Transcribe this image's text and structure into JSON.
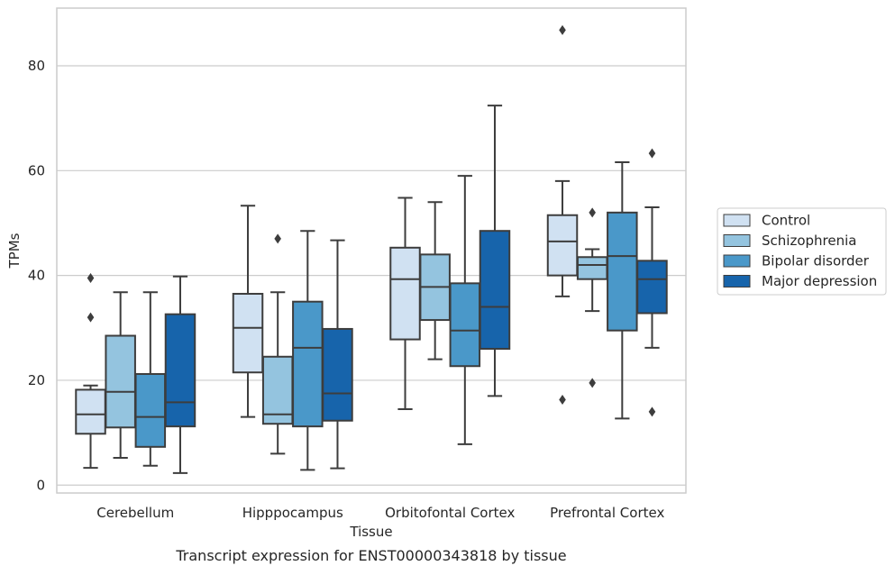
{
  "chart_data": {
    "type": "boxplot",
    "title": "Transcript expression for ENST00000343818 by tissue",
    "xlabel": "Tissue",
    "ylabel": "TPMs",
    "ylim": [
      -1.5,
      91
    ],
    "yticks": [
      0,
      20,
      40,
      60,
      80
    ],
    "grid": "horizontal",
    "legend_position": "right",
    "categories": [
      "Cerebellum",
      "Hipppocampus",
      "Orbitofontal Cortex",
      "Prefrontal Cortex"
    ],
    "series": [
      {
        "name": "Control",
        "color": "#d0e1f2",
        "boxes": [
          {
            "whislo": 3.3,
            "q1": 9.8,
            "med": 13.5,
            "q3": 18.2,
            "whishi": 19.0,
            "fliers": [
              32.0,
              39.5
            ]
          },
          {
            "whislo": 13.0,
            "q1": 21.5,
            "med": 30.0,
            "q3": 36.5,
            "whishi": 53.3,
            "fliers": []
          },
          {
            "whislo": 14.5,
            "q1": 27.8,
            "med": 39.3,
            "q3": 45.3,
            "whishi": 54.8,
            "fliers": []
          },
          {
            "whislo": 36.0,
            "q1": 40.0,
            "med": 46.5,
            "q3": 51.5,
            "whishi": 58.0,
            "fliers": [
              16.3,
              86.8
            ]
          }
        ]
      },
      {
        "name": "Schizophrenia",
        "color": "#94c4df",
        "boxes": [
          {
            "whislo": 5.2,
            "q1": 11.0,
            "med": 17.8,
            "q3": 28.5,
            "whishi": 36.8,
            "fliers": []
          },
          {
            "whislo": 6.0,
            "q1": 11.7,
            "med": 13.5,
            "q3": 24.5,
            "whishi": 36.8,
            "fliers": [
              47.0
            ]
          },
          {
            "whislo": 24.0,
            "q1": 31.5,
            "med": 37.8,
            "q3": 44.0,
            "whishi": 54.0,
            "fliers": []
          },
          {
            "whislo": 33.2,
            "q1": 39.3,
            "med": 42.0,
            "q3": 43.5,
            "whishi": 45.0,
            "fliers": [
              19.5,
              52.0
            ]
          }
        ]
      },
      {
        "name": "Bipolar disorder",
        "color": "#4a98c9",
        "boxes": [
          {
            "whislo": 3.7,
            "q1": 7.3,
            "med": 13.0,
            "q3": 21.2,
            "whishi": 36.8,
            "fliers": []
          },
          {
            "whislo": 2.9,
            "q1": 11.2,
            "med": 26.2,
            "q3": 35.0,
            "whishi": 48.5,
            "fliers": []
          },
          {
            "whislo": 7.8,
            "q1": 22.7,
            "med": 29.5,
            "q3": 38.5,
            "whishi": 59.0,
            "fliers": []
          },
          {
            "whislo": 12.7,
            "q1": 29.5,
            "med": 43.7,
            "q3": 52.0,
            "whishi": 61.6,
            "fliers": []
          }
        ]
      },
      {
        "name": "Major depression",
        "color": "#1764ab",
        "boxes": [
          {
            "whislo": 2.3,
            "q1": 11.2,
            "med": 15.8,
            "q3": 32.6,
            "whishi": 39.8,
            "fliers": []
          },
          {
            "whislo": 3.2,
            "q1": 12.3,
            "med": 17.5,
            "q3": 29.8,
            "whishi": 46.7,
            "fliers": []
          },
          {
            "whislo": 17.0,
            "q1": 26.0,
            "med": 34.0,
            "q3": 48.5,
            "whishi": 72.4,
            "fliers": []
          },
          {
            "whislo": 26.2,
            "q1": 32.8,
            "med": 39.3,
            "q3": 42.8,
            "whishi": 53.0,
            "fliers": [
              14.0,
              63.3
            ]
          }
        ]
      }
    ]
  }
}
